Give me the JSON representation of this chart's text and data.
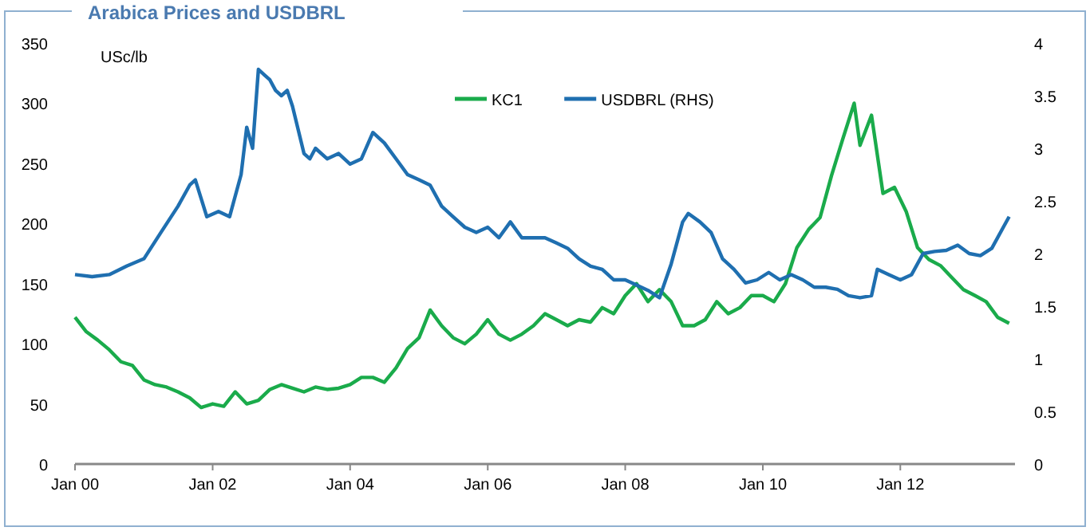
{
  "chart_data": {
    "type": "line",
    "title": "Arabica Prices and USDBRL",
    "ylabel": "USc/lb",
    "xlim": [
      "2000-01",
      "2013-09"
    ],
    "xticks": [
      {
        "value": "2000-01",
        "label": "Jan 00"
      },
      {
        "value": "2002-01",
        "label": "Jan 02"
      },
      {
        "value": "2004-01",
        "label": "Jan 04"
      },
      {
        "value": "2006-01",
        "label": "Jan 06"
      },
      {
        "value": "2008-01",
        "label": "Jan 08"
      },
      {
        "value": "2010-01",
        "label": "Jan 10"
      },
      {
        "value": "2012-01",
        "label": "Jan 12"
      }
    ],
    "ylim": [
      0,
      350
    ],
    "yticks": [
      0,
      50,
      100,
      150,
      200,
      250,
      300,
      350
    ],
    "y2lim": [
      0,
      4
    ],
    "y2ticks": [
      0,
      0.5,
      1,
      1.5,
      2,
      2.5,
      3,
      3.5,
      4
    ],
    "legend": "top",
    "grid": false,
    "marker": "none",
    "line_style": "solid",
    "series": [
      {
        "name": "KC1",
        "color": "#1aab4b",
        "x": [
          "2000-01",
          "2000-03",
          "2000-05",
          "2000-07",
          "2000-09",
          "2000-11",
          "2001-01",
          "2001-03",
          "2001-05",
          "2001-07",
          "2001-09",
          "2001-11",
          "2002-01",
          "2002-03",
          "2002-05",
          "2002-07",
          "2002-09",
          "2002-11",
          "2003-01",
          "2003-03",
          "2003-05",
          "2003-07",
          "2003-09",
          "2003-11",
          "2004-01",
          "2004-03",
          "2004-05",
          "2004-07",
          "2004-09",
          "2004-11",
          "2005-01",
          "2005-03",
          "2005-05",
          "2005-07",
          "2005-09",
          "2005-11",
          "2006-01",
          "2006-03",
          "2006-05",
          "2006-07",
          "2006-09",
          "2006-11",
          "2007-01",
          "2007-03",
          "2007-05",
          "2007-07",
          "2007-09",
          "2007-11",
          "2008-01",
          "2008-03",
          "2008-05",
          "2008-07",
          "2008-09",
          "2008-11",
          "2009-01",
          "2009-03",
          "2009-05",
          "2009-07",
          "2009-09",
          "2009-11",
          "2010-01",
          "2010-03",
          "2010-05",
          "2010-07",
          "2010-09",
          "2010-11",
          "2011-01",
          "2011-03",
          "2011-05",
          "2011-06",
          "2011-08",
          "2011-10",
          "2011-12",
          "2012-02",
          "2012-04",
          "2012-06",
          "2012-08",
          "2012-10",
          "2012-12",
          "2013-02",
          "2013-04",
          "2013-06",
          "2013-08"
        ],
        "values": [
          122,
          110,
          103,
          95,
          85,
          82,
          70,
          66,
          64,
          60,
          55,
          47,
          50,
          48,
          60,
          50,
          53,
          62,
          66,
          63,
          60,
          64,
          62,
          63,
          66,
          72,
          72,
          68,
          80,
          96,
          105,
          128,
          115,
          105,
          100,
          108,
          120,
          108,
          103,
          108,
          115,
          125,
          120,
          115,
          120,
          118,
          130,
          125,
          140,
          150,
          135,
          145,
          135,
          115,
          115,
          120,
          135,
          125,
          130,
          140,
          140,
          135,
          150,
          180,
          195,
          205,
          240,
          270,
          300,
          265,
          290,
          225,
          230,
          210,
          180,
          170,
          165,
          155,
          145,
          140,
          135,
          122,
          117
        ]
      },
      {
        "name": "USDBRL (RHS)",
        "color": "#1f6fb0",
        "axis": "y2",
        "x": [
          "2000-01",
          "2000-04",
          "2000-07",
          "2000-10",
          "2001-01",
          "2001-04",
          "2001-07",
          "2001-09",
          "2001-10",
          "2001-12",
          "2002-02",
          "2002-04",
          "2002-06",
          "2002-07",
          "2002-08",
          "2002-09",
          "2002-10",
          "2002-11",
          "2002-12",
          "2003-01",
          "2003-02",
          "2003-03",
          "2003-05",
          "2003-06",
          "2003-07",
          "2003-09",
          "2003-11",
          "2004-01",
          "2004-03",
          "2004-05",
          "2004-07",
          "2004-09",
          "2004-11",
          "2005-01",
          "2005-03",
          "2005-05",
          "2005-07",
          "2005-09",
          "2005-11",
          "2006-01",
          "2006-03",
          "2006-05",
          "2006-07",
          "2006-09",
          "2006-11",
          "2007-01",
          "2007-03",
          "2007-05",
          "2007-07",
          "2007-09",
          "2007-11",
          "2008-01",
          "2008-03",
          "2008-05",
          "2008-07",
          "2008-09",
          "2008-11",
          "2008-12",
          "2009-02",
          "2009-04",
          "2009-06",
          "2009-08",
          "2009-10",
          "2009-12",
          "2010-02",
          "2010-04",
          "2010-06",
          "2010-08",
          "2010-10",
          "2010-12",
          "2011-02",
          "2011-04",
          "2011-06",
          "2011-08",
          "2011-09",
          "2011-11",
          "2012-01",
          "2012-03",
          "2012-05",
          "2012-07",
          "2012-09",
          "2012-11",
          "2013-01",
          "2013-03",
          "2013-05",
          "2013-07",
          "2013-08"
        ],
        "values": [
          1.8,
          1.78,
          1.8,
          1.88,
          1.95,
          2.2,
          2.45,
          2.65,
          2.7,
          2.35,
          2.4,
          2.35,
          2.75,
          3.2,
          3.0,
          3.75,
          3.7,
          3.65,
          3.55,
          3.5,
          3.55,
          3.4,
          2.95,
          2.9,
          3.0,
          2.9,
          2.95,
          2.85,
          2.9,
          3.15,
          3.05,
          2.9,
          2.75,
          2.7,
          2.65,
          2.45,
          2.35,
          2.25,
          2.2,
          2.25,
          2.15,
          2.3,
          2.15,
          2.15,
          2.15,
          2.1,
          2.05,
          1.95,
          1.88,
          1.85,
          1.75,
          1.75,
          1.7,
          1.65,
          1.58,
          1.9,
          2.3,
          2.38,
          2.3,
          2.2,
          1.95,
          1.85,
          1.72,
          1.75,
          1.82,
          1.75,
          1.8,
          1.75,
          1.68,
          1.68,
          1.66,
          1.6,
          1.58,
          1.6,
          1.85,
          1.8,
          1.75,
          1.8,
          2.0,
          2.02,
          2.03,
          2.08,
          2.0,
          1.98,
          2.05,
          2.25,
          2.35
        ]
      }
    ]
  }
}
